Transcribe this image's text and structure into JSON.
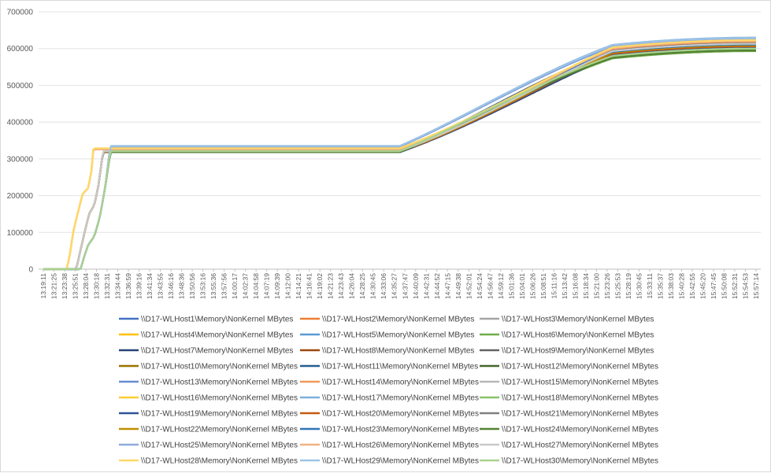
{
  "chart_data": {
    "type": "line",
    "title": "",
    "xlabel": "",
    "ylabel": "",
    "ylim": [
      0,
      700000
    ],
    "y_ticks": [
      "0",
      "100000",
      "200000",
      "300000",
      "400000",
      "500000",
      "600000",
      "700000"
    ],
    "grid": "horizontal",
    "legend_position": "bottom",
    "x_tick_labels": [
      "13:19:11",
      "13:21:25",
      "13:23:38",
      "13:25:51",
      "13:28:04",
      "13:30:18",
      "13:32:31",
      "13:34:44",
      "13:36:59",
      "13:39:16",
      "13:41:34",
      "13:43:55",
      "13:46:16",
      "13:48:36",
      "13:50:56",
      "13:53:16",
      "13:55:36",
      "13:57:56",
      "14:00:17",
      "14:02:37",
      "14:04:58",
      "14:07:19",
      "14:09:39",
      "14:12:00",
      "14:14:21",
      "14:16:41",
      "14:19:02",
      "14:21:23",
      "14:23:43",
      "14:26:04",
      "14:28:25",
      "14:30:45",
      "14:33:06",
      "14:35:27",
      "14:37:47",
      "14:40:09",
      "14:42:31",
      "14:44:52",
      "14:47:15",
      "14:49:38",
      "14:52:01",
      "14:54:24",
      "14:56:47",
      "14:59:12",
      "15:01:36",
      "15:04:01",
      "15:06:26",
      "15:08:51",
      "15:11:16",
      "15:13:42",
      "15:16:08",
      "15:18:34",
      "15:21:00",
      "15:23:26",
      "15:25:53",
      "15:28:19",
      "15:30:45",
      "15:33:11",
      "15:35:37",
      "15:38:03",
      "15:40:28",
      "15:42:55",
      "15:45:20",
      "15:47:45",
      "15:50:08",
      "15:52:31",
      "15:54:53",
      "15:57:14"
    ],
    "series": [
      {
        "name": "\\\\D17-WLHost1\\Memory\\NonKernel MBytes",
        "color": "#4472C4",
        "group": "B",
        "plateau": 318000,
        "final": 612000
      },
      {
        "name": "\\\\D17-WLHost2\\Memory\\NonKernel MBytes",
        "color": "#ED7D31",
        "group": "A",
        "plateau": 327000,
        "final": 620000
      },
      {
        "name": "\\\\D17-WLHost3\\Memory\\NonKernel MBytes",
        "color": "#A5A5A5",
        "group": "B",
        "plateau": 320000,
        "final": 605000
      },
      {
        "name": "\\\\D17-WLHost4\\Memory\\NonKernel MBytes",
        "color": "#FFC000",
        "group": "A",
        "plateau": 326000,
        "final": 618000
      },
      {
        "name": "\\\\D17-WLHost5\\Memory\\NonKernel MBytes",
        "color": "#5B9BD5",
        "group": "C",
        "plateau": 334000,
        "final": 628000
      },
      {
        "name": "\\\\D17-WLHost6\\Memory\\NonKernel MBytes",
        "color": "#70AD47",
        "group": "C",
        "plateau": 318000,
        "final": 593000
      },
      {
        "name": "\\\\D17-WLHost7\\Memory\\NonKernel MBytes",
        "color": "#264478",
        "group": "B",
        "plateau": 318000,
        "final": 600000
      },
      {
        "name": "\\\\D17-WLHost8\\Memory\\NonKernel MBytes",
        "color": "#9E480E",
        "group": "B",
        "plateau": 319000,
        "final": 603000
      },
      {
        "name": "\\\\D17-WLHost9\\Memory\\NonKernel MBytes",
        "color": "#636363",
        "group": "C",
        "plateau": 318000,
        "final": 615000
      },
      {
        "name": "\\\\D17-WLHost10\\Memory\\NonKernel MBytes",
        "color": "#997300",
        "group": "B",
        "plateau": 319000,
        "final": 608000
      },
      {
        "name": "\\\\D17-WLHost11\\Memory\\NonKernel MBytes",
        "color": "#255E91",
        "group": "C",
        "plateau": 319000,
        "final": 610000
      },
      {
        "name": "\\\\D17-WLHost12\\Memory\\NonKernel MBytes",
        "color": "#43682B",
        "group": "C",
        "plateau": 318000,
        "final": 596000
      },
      {
        "name": "\\\\D17-WLHost13\\Memory\\NonKernel MBytes",
        "color": "#698ED0",
        "group": "C",
        "plateau": 333000,
        "final": 625000
      },
      {
        "name": "\\\\D17-WLHost14\\Memory\\NonKernel MBytes",
        "color": "#F1975A",
        "group": "A",
        "plateau": 326000,
        "final": 619000
      },
      {
        "name": "\\\\D17-WLHost15\\Memory\\NonKernel MBytes",
        "color": "#B7B7B7",
        "group": "B",
        "plateau": 321000,
        "final": 612000
      },
      {
        "name": "\\\\D17-WLHost16\\Memory\\NonKernel MBytes",
        "color": "#FFCD33",
        "group": "A",
        "plateau": 328000,
        "final": 622000
      },
      {
        "name": "\\\\D17-WLHost17\\Memory\\NonKernel MBytes",
        "color": "#7CAFDD",
        "group": "C",
        "plateau": 335000,
        "final": 630000
      },
      {
        "name": "\\\\D17-WLHost18\\Memory\\NonKernel MBytes",
        "color": "#8CC168",
        "group": "C",
        "plateau": 320000,
        "final": 598000
      },
      {
        "name": "\\\\D17-WLHost19\\Memory\\NonKernel MBytes",
        "color": "#2F5597",
        "group": "B",
        "plateau": 318000,
        "final": 604000
      },
      {
        "name": "\\\\D17-WLHost20\\Memory\\NonKernel MBytes",
        "color": "#C55A11",
        "group": "B",
        "plateau": 319000,
        "final": 606000
      },
      {
        "name": "\\\\D17-WLHost21\\Memory\\NonKernel MBytes",
        "color": "#7F7F7F",
        "group": "B",
        "plateau": 321000,
        "final": 614000
      },
      {
        "name": "\\\\D17-WLHost22\\Memory\\NonKernel MBytes",
        "color": "#BF9000",
        "group": "B",
        "plateau": 320000,
        "final": 609000
      },
      {
        "name": "\\\\D17-WLHost23\\Memory\\NonKernel MBytes",
        "color": "#2E75B6",
        "group": "C",
        "plateau": 320000,
        "final": 611000
      },
      {
        "name": "\\\\D17-WLHost24\\Memory\\NonKernel MBytes",
        "color": "#548235",
        "group": "C",
        "plateau": 318000,
        "final": 595000
      },
      {
        "name": "\\\\D17-WLHost25\\Memory\\NonKernel MBytes",
        "color": "#8FAADC",
        "group": "C",
        "plateau": 334000,
        "final": 627000
      },
      {
        "name": "\\\\D17-WLHost26\\Memory\\NonKernel MBytes",
        "color": "#F4B183",
        "group": "A",
        "plateau": 327000,
        "final": 621000
      },
      {
        "name": "\\\\D17-WLHost27\\Memory\\NonKernel MBytes",
        "color": "#C9C9C9",
        "group": "B",
        "plateau": 321000,
        "final": 613000
      },
      {
        "name": "\\\\D17-WLHost28\\Memory\\NonKernel MBytes",
        "color": "#FFD966",
        "group": "A",
        "plateau": 329000,
        "final": 623000
      },
      {
        "name": "\\\\D17-WLHost29\\Memory\\NonKernel MBytes",
        "color": "#9DC3E6",
        "group": "C",
        "plateau": 335000,
        "final": 629000
      },
      {
        "name": "\\\\D17-WLHost30\\Memory\\NonKernel MBytes",
        "color": "#A9D18E",
        "group": "C",
        "plateau": 321000,
        "final": 600000
      }
    ]
  }
}
